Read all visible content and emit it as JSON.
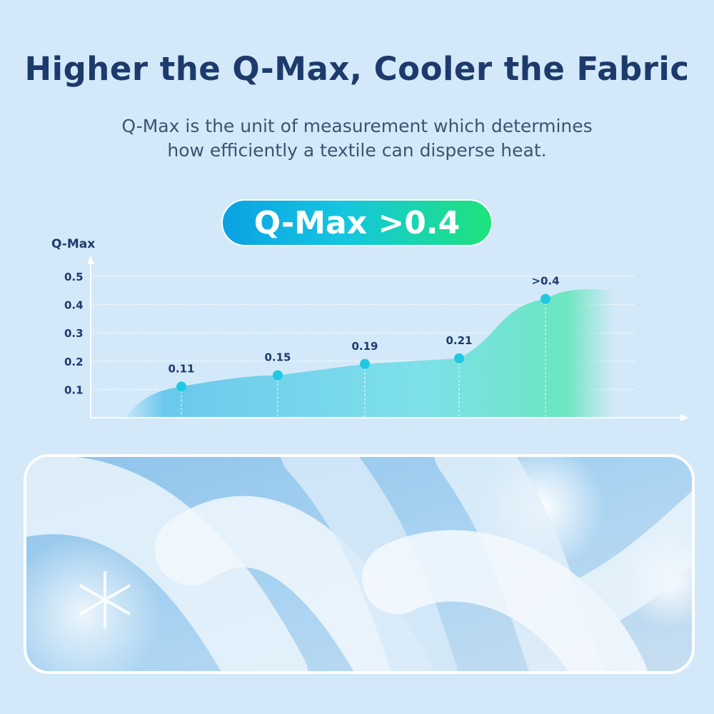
{
  "title": "Higher the Q-Max, Cooler the Fabric",
  "subtitle_line1": "Q-Max is the unit of measurement which determines",
  "subtitle_line2": "how efficiently a textile can disperse heat.",
  "badge": "Q-Max >0.4",
  "colors": {
    "title": "#1d3a6c",
    "background": "#d3e9f9",
    "point": "#1fc8e3",
    "area_start": "#6cc8ec",
    "area_end": "#6ae6c0"
  },
  "chart_data": {
    "type": "area",
    "ylabel": "Q-Max",
    "xlabel": "",
    "ylim": [
      0,
      0.5
    ],
    "yticks": [
      "0.1",
      "0.2",
      "0.3",
      "0.4",
      "0.5"
    ],
    "grid": true,
    "points": [
      {
        "value": 0.11,
        "label": "0.11"
      },
      {
        "value": 0.15,
        "label": "0.15"
      },
      {
        "value": 0.19,
        "label": "0.19"
      },
      {
        "value": 0.21,
        "label": "0.21"
      },
      {
        "value": 0.42,
        "label": ">0.4"
      }
    ]
  },
  "image": {
    "subject": "fabric-fibers-with-clouds-and-snowflakes"
  }
}
